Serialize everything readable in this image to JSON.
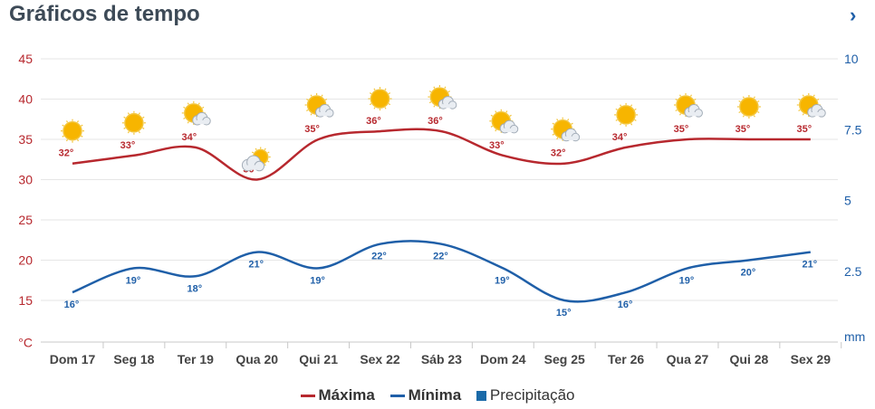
{
  "header": {
    "title": "Gráficos de tempo",
    "next_icon": "chevron-right-icon"
  },
  "chart_data": {
    "type": "line",
    "categories": [
      "Dom 17",
      "Seg 18",
      "Ter 19",
      "Qua 20",
      "Qui 21",
      "Sex 22",
      "Sáb 23",
      "Dom 24",
      "Seg 25",
      "Ter 26",
      "Qua 27",
      "Qui 28",
      "Sex 29"
    ],
    "series": [
      {
        "name": "Máxima",
        "color": "#b7282e",
        "values": [
          32,
          33,
          34,
          30,
          35,
          36,
          36,
          33,
          32,
          34,
          35,
          35,
          35
        ]
      },
      {
        "name": "Mínima",
        "color": "#1f5fa8",
        "values": [
          16,
          19,
          18,
          21,
          19,
          22,
          22,
          19,
          15,
          16,
          19,
          20,
          21
        ]
      },
      {
        "name": "Precipitação",
        "color": "#1a6aa8",
        "values": [
          0,
          0,
          0,
          0,
          0,
          0,
          0,
          0,
          0,
          0,
          0,
          0,
          0
        ]
      }
    ],
    "weather_icons": [
      "sun",
      "sun",
      "sun-cloud",
      "cloud-sun",
      "sun-cloud",
      "sun",
      "sun-cloud",
      "sun-cloud",
      "sun-cloud",
      "sun",
      "sun-cloud",
      "sun",
      "sun-cloud"
    ],
    "y_left": {
      "unit": "°C",
      "ticks": [
        15,
        20,
        25,
        30,
        35,
        40,
        45
      ],
      "range": [
        10,
        45
      ]
    },
    "y_right": {
      "unit": "mm",
      "ticks": [
        "2.5",
        "5",
        "7.5",
        "10"
      ],
      "range": [
        0,
        10
      ]
    },
    "grid": true,
    "legend_position": "bottom-center"
  }
}
